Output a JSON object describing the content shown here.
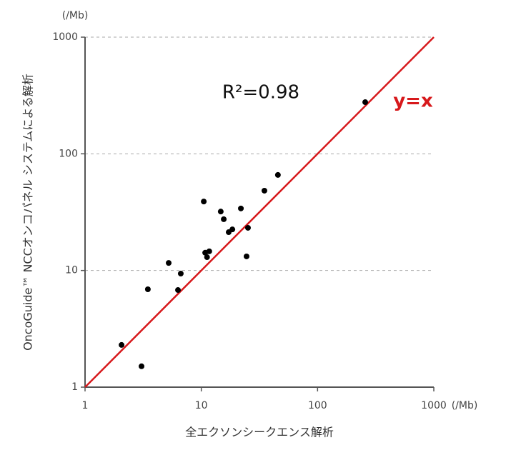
{
  "chart_data": {
    "type": "scatter",
    "x_label": "全エクソンシークエンス解析",
    "y_label": "OncoGuide™ NCCオンコパネル システムによる解析",
    "x_unit": "(/Mb)",
    "y_unit": "(/Mb)",
    "annotation": "R²=0.98",
    "reference_line": {
      "label": "y=x",
      "color": "#d7191c"
    },
    "log_x": true,
    "log_y": true,
    "grid": true,
    "xlim": [
      1,
      1000
    ],
    "ylim": [
      1,
      1000
    ],
    "xticks": [
      1,
      10,
      100,
      1000
    ],
    "yticks": [
      1,
      10,
      100,
      1000
    ],
    "series": [
      {
        "color": "#000000",
        "x": [
          2.06,
          3.06,
          3.47,
          5.24,
          6.3,
          6.66,
          10.5,
          10.8,
          11.2,
          11.7,
          14.7,
          15.6,
          17.2,
          18.5,
          21.9,
          24.5,
          25.2,
          34.9,
          45.6,
          257
        ],
        "values": [
          2.3,
          1.51,
          6.9,
          11.6,
          6.8,
          9.4,
          39,
          14.2,
          13.0,
          14.6,
          32,
          27.5,
          21.3,
          22.5,
          34,
          13.2,
          23.2,
          48.3,
          65.9,
          277
        ]
      }
    ]
  }
}
